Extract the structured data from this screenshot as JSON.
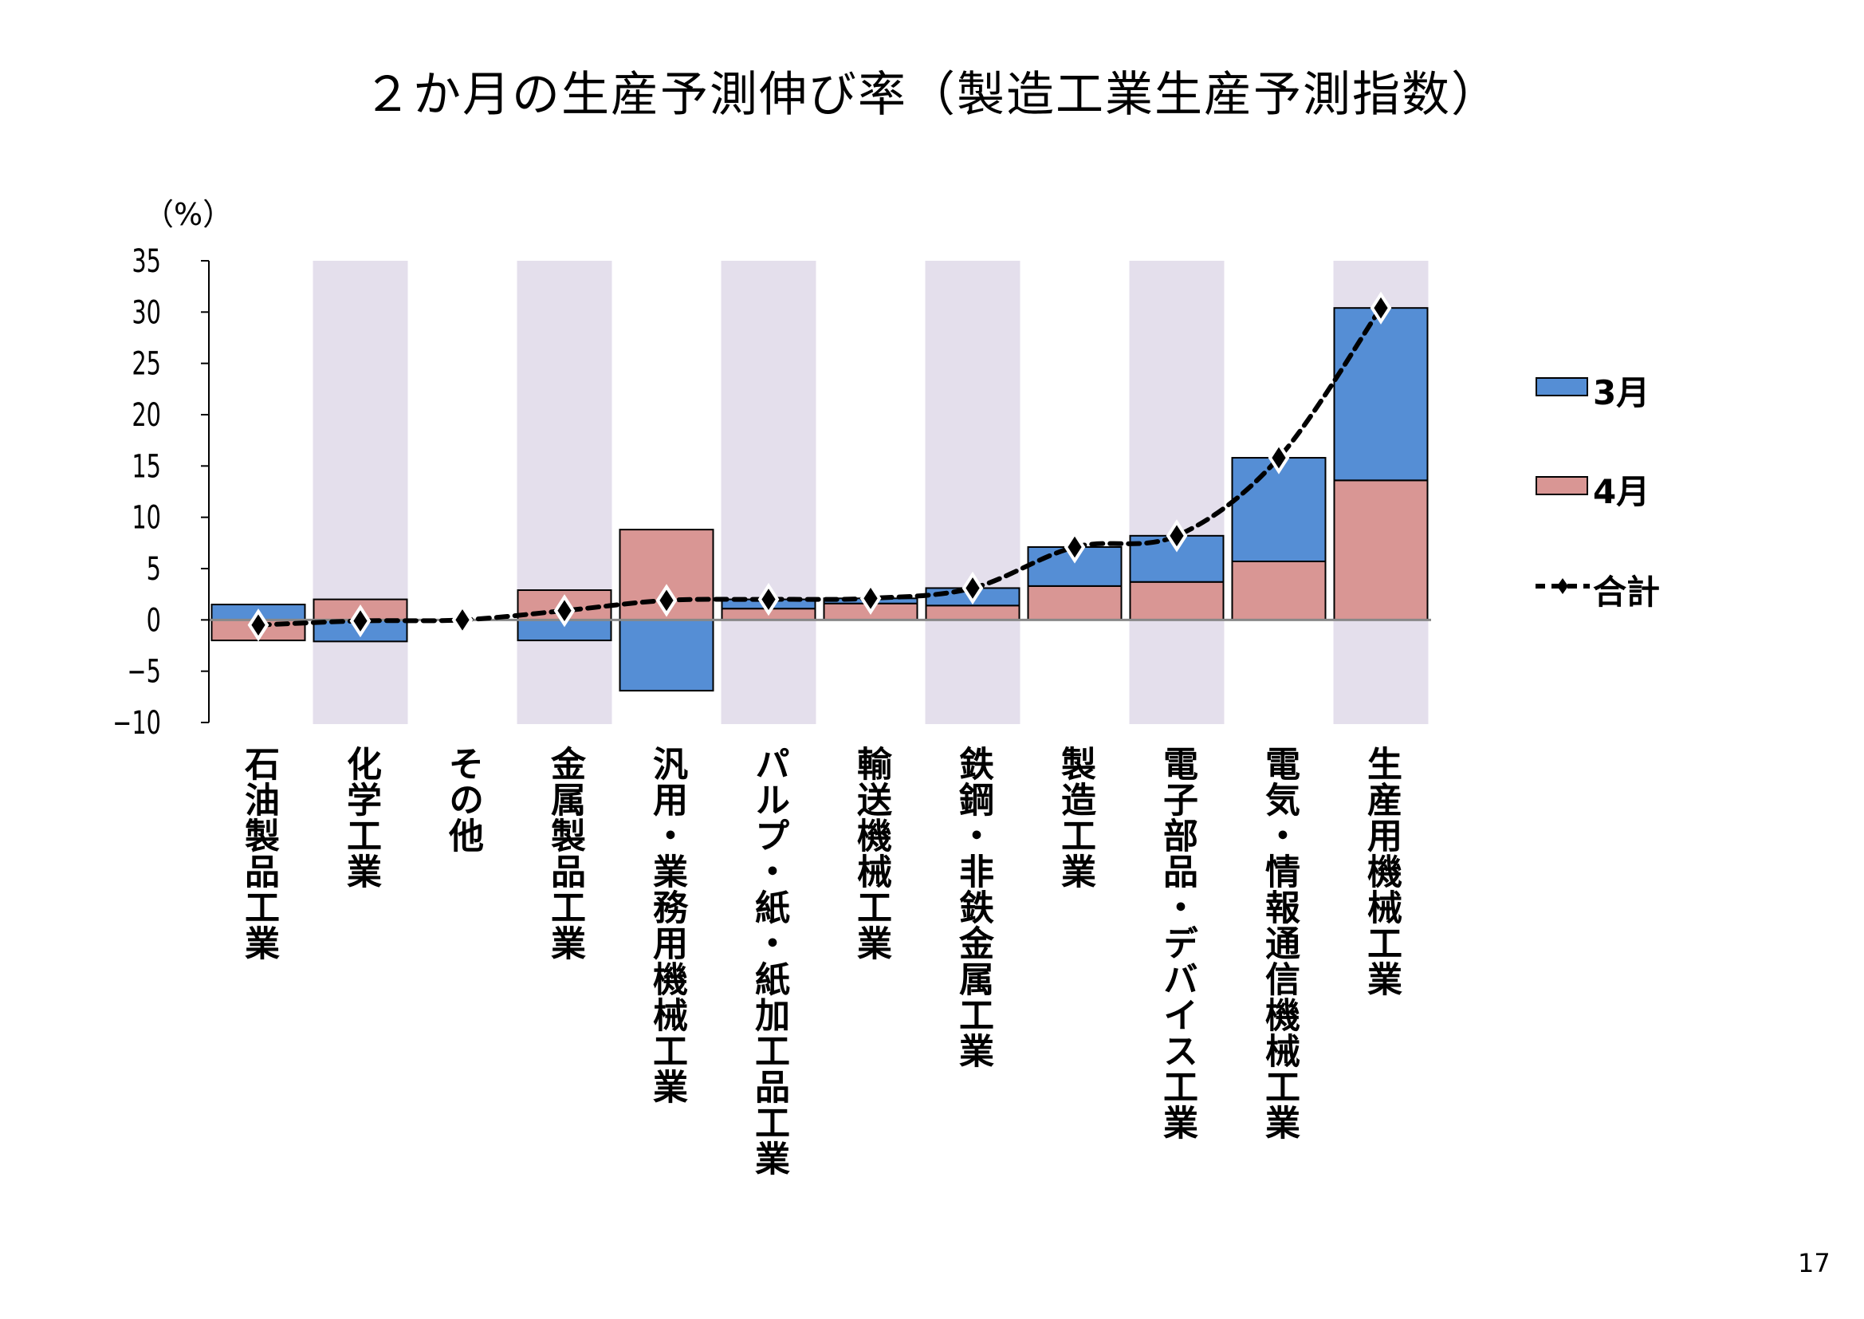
{
  "page_number": "17",
  "chart_data": {
    "type": "bar",
    "stacked": true,
    "title": "２か月の生産予測伸び率（製造工業生産予測指数）",
    "ylabel": "（%）",
    "ylim": [
      -10,
      35
    ],
    "yticks": [
      35,
      30,
      25,
      20,
      15,
      10,
      5,
      0,
      -5,
      -10
    ],
    "ytick_labels": [
      "35",
      "30",
      "25",
      "20",
      "15",
      "10",
      "5",
      "0",
      "−5",
      "−10"
    ],
    "categories": [
      "石油製品工業",
      "化学工業",
      "その他",
      "金属製品工業",
      "汎用・業務用機械工業",
      "パルプ・紙・紙加工品工業",
      "輸送機械工業",
      "鉄鋼・非鉄金属工業",
      "製造工業",
      "電子部品・デバイス工業",
      "電気・情報通信機械工業",
      "生産用機械工業"
    ],
    "series": [
      {
        "name": "4月",
        "type": "bar",
        "color": "#D99694",
        "values": [
          -2.0,
          2.0,
          0.0,
          2.9,
          8.8,
          1.1,
          1.6,
          1.4,
          3.3,
          3.7,
          5.7,
          13.6
        ]
      },
      {
        "name": "3月",
        "type": "bar",
        "color": "#558ED5",
        "values": [
          1.5,
          -2.1,
          0.0,
          -2.0,
          -6.9,
          0.9,
          0.5,
          1.7,
          3.8,
          4.5,
          10.1,
          16.8
        ]
      },
      {
        "name": "合計",
        "type": "line",
        "style": "dashed",
        "marker": "diamond",
        "color": "#000000",
        "values": [
          -0.5,
          -0.1,
          0.0,
          0.9,
          1.9,
          2.0,
          2.1,
          3.1,
          7.1,
          8.2,
          15.8,
          30.4
        ]
      }
    ],
    "legend_order": [
      "3月",
      "4月",
      "合計"
    ],
    "legend_position": "right",
    "band_color": "#E4DFEC",
    "grid": false
  }
}
